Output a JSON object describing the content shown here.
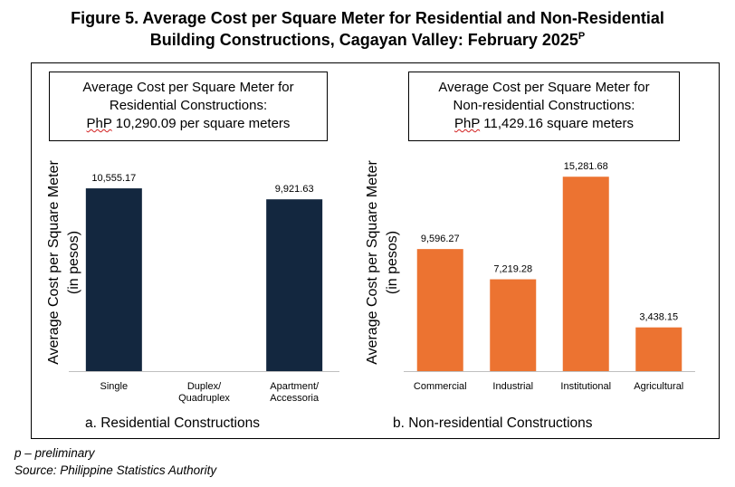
{
  "title": {
    "line1": "Figure 5. Average Cost per Square Meter for Residential and Non-Residential",
    "line2": "Building Constructions, Cagayan Valley: February 2025",
    "sup": "P"
  },
  "colors": {
    "residential": "#13273f",
    "nonresidential": "#ec7331"
  },
  "chart_data": [
    {
      "type": "bar",
      "caption": "a.   Residential Constructions",
      "callout": {
        "line1": "Average Cost per Square Meter for",
        "line2": "Residential Constructions:",
        "currency": "PhP",
        "value_text": " 10,290.09 per square meters"
      },
      "ylabel": [
        "Average Cost per Square Meter",
        "(in pesos)"
      ],
      "categories": [
        [
          "Single"
        ],
        [
          "Duplex/",
          "Quadruplex"
        ],
        [
          "Apartment/",
          "Accessoria"
        ]
      ],
      "values": [
        10555.17,
        null,
        9921.63
      ],
      "labels": [
        "10,555.17",
        "",
        "9,921.63"
      ],
      "ylim": [
        0,
        11500
      ]
    },
    {
      "type": "bar",
      "caption": "b.   Non-residential Constructions",
      "callout": {
        "line1": "Average Cost per Square Meter for",
        "line2": "Non-residential Constructions:",
        "currency": "PhP",
        "value_text": " 11,429.16 square meters"
      },
      "ylabel": [
        "Average Cost per Square Meter",
        "(in pesos)"
      ],
      "categories": [
        [
          "Commercial"
        ],
        [
          "Industrial"
        ],
        [
          "Institutional"
        ],
        [
          "Agricultural"
        ]
      ],
      "values": [
        9596.27,
        7219.28,
        15281.68,
        3438.15
      ],
      "labels": [
        "9,596.27",
        "7,219.28",
        "15,281.68",
        "3,438.15"
      ],
      "ylim": [
        0,
        16650
      ]
    }
  ],
  "footer": {
    "note": "p – preliminary",
    "source": "Source: Philippine Statistics Authority"
  }
}
